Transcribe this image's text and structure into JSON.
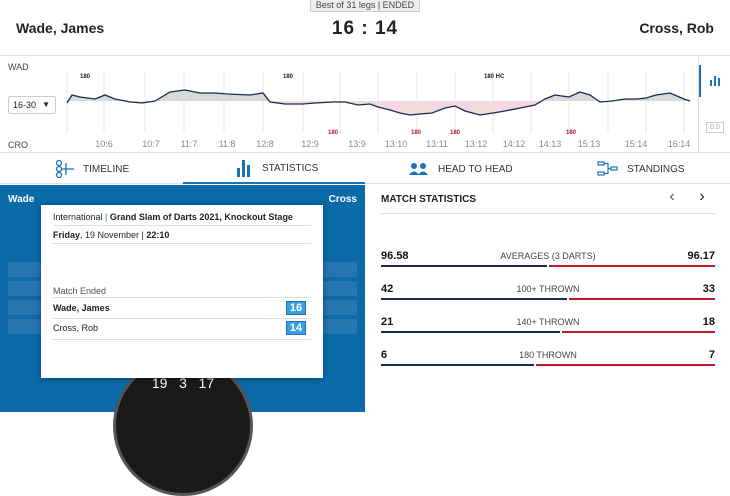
{
  "match": {
    "banner": "Best of 31 legs | ENDED",
    "player1": "Wade, James",
    "player2": "Cross, Rob",
    "score": "16 : 14"
  },
  "timeline": {
    "top_label": "WAD",
    "bottom_label": "CRO",
    "select_value": "16-30",
    "toggle_label": "0.0",
    "times": [
      "10:6",
      "10:7",
      "11:7",
      "11:8",
      "12:8",
      "12:9",
      "13:9",
      "13:10",
      "13:11",
      "13:12",
      "14:12",
      "14:13",
      "15:13",
      "15:14",
      "16:14"
    ],
    "top_tags": [
      "180",
      "180",
      "180 HC"
    ],
    "bottom_tags": [
      "180",
      "180",
      "180",
      "180"
    ]
  },
  "tabs": [
    {
      "label": "TIMELINE"
    },
    {
      "label": "STATISTICS"
    },
    {
      "label": "HEAD TO HEAD"
    },
    {
      "label": "STANDINGS"
    }
  ],
  "left": {
    "name_left": "Wade",
    "name_right": "Cross",
    "board_numbers": "19   3   17"
  },
  "popup": {
    "competition": "International",
    "event": "Grand Slam of Darts 2021, Knockout Stage",
    "day": "Friday",
    "date": ", 19 November | ",
    "time": "22:10",
    "status": "Match Ended",
    "rows": [
      {
        "name": "Wade, James",
        "score": "16"
      },
      {
        "name": "Cross, Rob",
        "score": "14"
      }
    ]
  },
  "stats": {
    "title": "MATCH STATISTICS",
    "prev_icon": "chevron-left-icon",
    "next_icon": "chevron-right-icon",
    "rows": [
      {
        "label": "AVERAGES (3 DARTS)",
        "left": "96.58",
        "right": "96.17",
        "left_share": 0.501
      },
      {
        "label": "100+ THROWN",
        "left": "42",
        "right": "33",
        "left_share": 0.56
      },
      {
        "label": "140+ THROWN",
        "left": "21",
        "right": "18",
        "left_share": 0.538
      },
      {
        "label": "180 THROWN",
        "left": "6",
        "right": "7",
        "left_share": 0.46
      }
    ]
  },
  "colors": {
    "accent": "#1a73b8",
    "wade": "#1b2a55",
    "cross": "#c0182c",
    "panel": "#0b6aa8"
  }
}
